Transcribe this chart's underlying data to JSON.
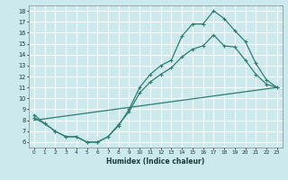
{
  "xlabel": "Humidex (Indice chaleur)",
  "bg_color": "#cce9ed",
  "grid_color": "#ffffff",
  "line_color": "#2e7d72",
  "xlim": [
    -0.5,
    23.5
  ],
  "ylim": [
    5.5,
    18.5
  ],
  "xticks": [
    0,
    1,
    2,
    3,
    4,
    5,
    6,
    7,
    8,
    9,
    10,
    11,
    12,
    13,
    14,
    15,
    16,
    17,
    18,
    19,
    20,
    21,
    22,
    23
  ],
  "yticks": [
    6,
    7,
    8,
    9,
    10,
    11,
    12,
    13,
    14,
    15,
    16,
    17,
    18
  ],
  "curve1_x": [
    0,
    1,
    2,
    3,
    4,
    5,
    6,
    7,
    8,
    9,
    10,
    11,
    12,
    13,
    14,
    15,
    16,
    17,
    18,
    19,
    20,
    21,
    22,
    23
  ],
  "curve1_y": [
    8.5,
    7.7,
    7.0,
    6.5,
    6.5,
    6.0,
    6.0,
    6.5,
    7.5,
    9.0,
    11.0,
    12.2,
    13.0,
    13.5,
    15.7,
    16.8,
    16.8,
    18.0,
    17.3,
    16.2,
    15.2,
    13.2,
    11.7,
    11.0
  ],
  "curve2_x": [
    0,
    1,
    2,
    3,
    4,
    5,
    6,
    7,
    8,
    9,
    10,
    11,
    12,
    13,
    14,
    15,
    16,
    17,
    18,
    19,
    20,
    21,
    22,
    23
  ],
  "curve2_y": [
    8.2,
    7.7,
    7.0,
    6.5,
    6.5,
    6.0,
    6.0,
    6.5,
    7.6,
    8.8,
    10.5,
    11.5,
    12.2,
    12.8,
    13.8,
    14.5,
    14.8,
    15.8,
    14.8,
    14.7,
    13.5,
    12.2,
    11.3,
    11.0
  ],
  "curve3_x": [
    0,
    23
  ],
  "curve3_y": [
    8.0,
    11.0
  ]
}
